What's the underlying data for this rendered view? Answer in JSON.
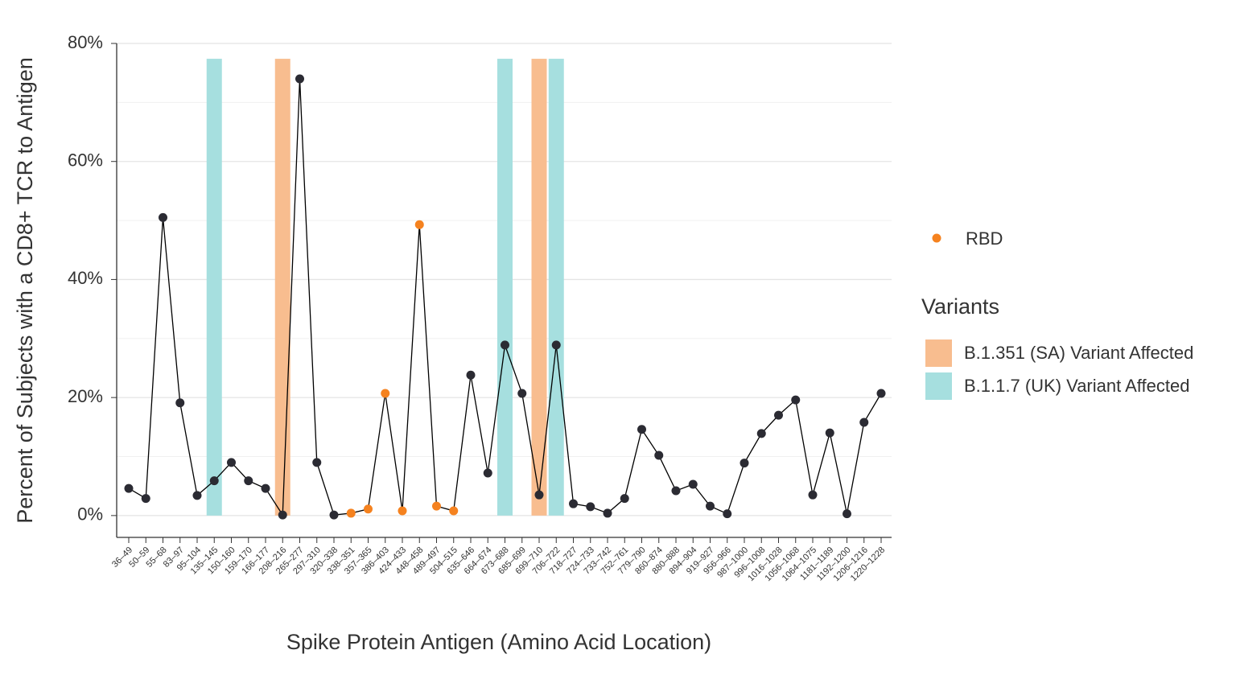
{
  "chart_data": {
    "type": "line",
    "x_label": "Spike Protein Antigen (Amino Acid Location)",
    "y_label": "Percent of Subjects with a CD8+ TCR to Antigen",
    "categories": [
      "36–49",
      "50–59",
      "55–68",
      "83–97",
      "95–104",
      "135–145",
      "150–160",
      "159–170",
      "166–177",
      "208–216",
      "265–277",
      "297–310",
      "320–338",
      "338–351",
      "357–365",
      "386–403",
      "424–433",
      "448–458",
      "489–497",
      "504–515",
      "635–646",
      "664–674",
      "673–688",
      "685–699",
      "699–710",
      "706–722",
      "718–727",
      "724–733",
      "733–742",
      "752–761",
      "779–790",
      "860–874",
      "880–888",
      "894–904",
      "919–927",
      "956–966",
      "987–1000",
      "996–1008",
      "1016–1028",
      "1056–1068",
      "1064–1075",
      "1181–1189",
      "1192–1200",
      "1206–1216",
      "1220–1228"
    ],
    "values": [
      4.6,
      2.9,
      50.5,
      19.1,
      3.4,
      5.9,
      9.0,
      5.9,
      4.6,
      0.1,
      74.0,
      9.0,
      0.1,
      0.4,
      1.1,
      20.7,
      0.8,
      49.3,
      1.6,
      0.8,
      23.8,
      7.2,
      28.9,
      20.7,
      3.5,
      28.9,
      2.0,
      1.5,
      0.4,
      2.9,
      14.6,
      10.2,
      4.2,
      5.3,
      1.6,
      0.3,
      8.9,
      13.9,
      17.0,
      19.6,
      3.5,
      14.0,
      0.3,
      15.8,
      20.7
    ],
    "point_colors": [
      "#2b2b33",
      "#2b2b33",
      "#2b2b33",
      "#2b2b33",
      "#2b2b33",
      "#2b2b33",
      "#2b2b33",
      "#2b2b33",
      "#2b2b33",
      "#2b2b33",
      "#2b2b33",
      "#2b2b33",
      "#2b2b33",
      "#f5821f",
      "#f5821f",
      "#f5821f",
      "#f5821f",
      "#f5821f",
      "#f5821f",
      "#f5821f",
      "#2b2b33",
      "#2b2b33",
      "#2b2b33",
      "#2b2b33",
      "#2b2b33",
      "#2b2b33",
      "#2b2b33",
      "#2b2b33",
      "#2b2b33",
      "#2b2b33",
      "#2b2b33",
      "#2b2b33",
      "#2b2b33",
      "#2b2b33",
      "#2b2b33",
      "#2b2b33",
      "#2b2b33",
      "#2b2b33",
      "#2b2b33",
      "#2b2b33",
      "#2b2b33",
      "#2b2b33",
      "#2b2b33",
      "#2b2b33",
      "#2b2b33"
    ],
    "line_color": "#000000",
    "ylim": [
      -3.7,
      80
    ],
    "yticks": [
      {
        "value": 0,
        "label": "0%"
      },
      {
        "value": 20,
        "label": "20%"
      },
      {
        "value": 40,
        "label": "40%"
      },
      {
        "value": 60,
        "label": "60%"
      },
      {
        "value": 80,
        "label": "80%"
      }
    ],
    "minor_yticks": [
      10,
      30,
      50,
      70
    ],
    "grid": true,
    "legend": {
      "name": "RBD",
      "color": "#f5821f"
    },
    "variants": {
      "title": "Variants",
      "items": [
        {
          "name": "B.1.351 (SA) Variant Affected",
          "color": "#f8bd8f"
        },
        {
          "name": "B.1.1.7 (UK) Variant Affected",
          "color": "#a6dfdf"
        }
      ]
    },
    "band_top": 77.4,
    "bands": [
      {
        "category": "135–145",
        "variant": "B.1.1.7 (UK) Variant Affected"
      },
      {
        "category": "208–216",
        "variant": "B.1.351 (SA) Variant Affected"
      },
      {
        "category": "673–688",
        "variant": "B.1.1.7 (UK) Variant Affected"
      },
      {
        "category": "699–710",
        "variant": "B.1.351 (SA) Variant Affected"
      },
      {
        "category": "706–722",
        "variant": "B.1.1.7 (UK) Variant Affected"
      }
    ]
  }
}
